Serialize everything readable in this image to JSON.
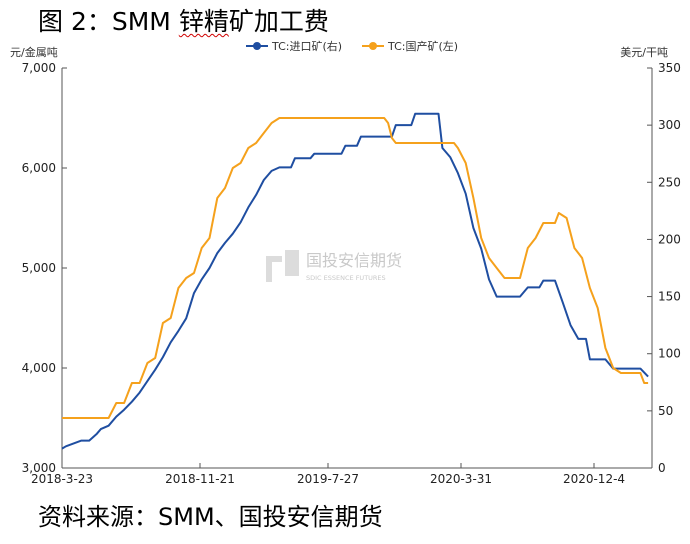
{
  "title": {
    "prefix": "图 2：SMM ",
    "underlined": "锌精",
    "suffix": "矿加工费"
  },
  "source": "资料来源：SMM、国投安信期货",
  "watermark": {
    "name": "国投安信期货",
    "sub": "SDIC ESSENCE FUTURES"
  },
  "colors": {
    "import": "#1f4ea1",
    "domestic": "#f5a11c",
    "axis": "#555555",
    "watermark": "#c9c9c9"
  },
  "chart_data": {
    "type": "line",
    "left_axis": {
      "label": "元/金属吨",
      "range": [
        3000,
        7000
      ],
      "ticks": [
        3000,
        4000,
        5000,
        6000,
        7000
      ],
      "tick_labels": [
        "3,000",
        "4,000",
        "5,000",
        "6,000",
        "7,000"
      ]
    },
    "right_axis": {
      "label": "美元/干吨",
      "range": [
        0,
        350
      ],
      "ticks": [
        0,
        50,
        100,
        150,
        200,
        250,
        300,
        350
      ],
      "tick_labels": [
        "0",
        "50",
        "100",
        "150",
        "200",
        "250",
        "300",
        "350"
      ]
    },
    "x_axis": {
      "tick_labels": [
        "2018-3-23",
        "2018-11-21",
        "2019-7-27",
        "2020-3-31",
        "2020-12-4"
      ]
    },
    "legend": {
      "position": "top",
      "entries": [
        "TC:进口矿(右)",
        "TC:国产矿(左)"
      ]
    },
    "grid": false,
    "series": [
      {
        "name": "TC:进口矿(右)",
        "axis": "right",
        "points": [
          [
            "2018-03-23",
            17
          ],
          [
            "2018-03-30",
            19
          ],
          [
            "2018-04-27",
            24
          ],
          [
            "2018-05-11",
            24
          ],
          [
            "2018-05-25",
            30
          ],
          [
            "2018-06-01",
            34
          ],
          [
            "2018-06-15",
            37
          ],
          [
            "2018-06-29",
            45
          ],
          [
            "2018-07-13",
            51
          ],
          [
            "2018-07-27",
            58
          ],
          [
            "2018-08-10",
            66
          ],
          [
            "2018-08-24",
            76
          ],
          [
            "2018-09-07",
            86
          ],
          [
            "2018-09-21",
            97
          ],
          [
            "2018-10-05",
            110
          ],
          [
            "2018-10-19",
            120
          ],
          [
            "2018-11-02",
            131
          ],
          [
            "2018-11-16",
            153
          ],
          [
            "2018-11-30",
            165
          ],
          [
            "2018-12-14",
            175
          ],
          [
            "2018-12-28",
            188
          ],
          [
            "2019-01-11",
            197
          ],
          [
            "2019-01-25",
            205
          ],
          [
            "2019-02-08",
            215
          ],
          [
            "2019-02-22",
            228
          ],
          [
            "2019-03-08",
            239
          ],
          [
            "2019-03-22",
            252
          ],
          [
            "2019-04-05",
            260
          ],
          [
            "2019-04-19",
            263
          ],
          [
            "2019-05-10",
            263
          ],
          [
            "2019-05-17",
            271
          ],
          [
            "2019-06-14",
            271
          ],
          [
            "2019-06-21",
            275
          ],
          [
            "2019-08-09",
            275
          ],
          [
            "2019-08-16",
            282
          ],
          [
            "2019-09-06",
            282
          ],
          [
            "2019-09-13",
            290
          ],
          [
            "2019-11-08",
            290
          ],
          [
            "2019-11-15",
            300
          ],
          [
            "2019-12-13",
            300
          ],
          [
            "2019-12-20",
            310
          ],
          [
            "2020-01-31",
            310
          ],
          [
            "2020-02-07",
            280
          ],
          [
            "2020-02-21",
            272
          ],
          [
            "2020-03-06",
            258
          ],
          [
            "2020-03-20",
            240
          ],
          [
            "2020-04-03",
            210
          ],
          [
            "2020-04-17",
            192
          ],
          [
            "2020-05-01",
            165
          ],
          [
            "2020-05-15",
            150
          ],
          [
            "2020-05-29",
            150
          ],
          [
            "2020-06-26",
            150
          ],
          [
            "2020-07-10",
            158
          ],
          [
            "2020-07-31",
            158
          ],
          [
            "2020-08-07",
            164
          ],
          [
            "2020-08-28",
            164
          ],
          [
            "2020-09-11",
            145
          ],
          [
            "2020-09-25",
            125
          ],
          [
            "2020-10-09",
            113
          ],
          [
            "2020-10-23",
            113
          ],
          [
            "2020-10-30",
            95
          ],
          [
            "2020-11-27",
            95
          ],
          [
            "2020-12-11",
            87
          ],
          [
            "2021-01-29",
            87
          ],
          [
            "2021-02-12",
            80
          ]
        ]
      },
      {
        "name": "TC:国产矿(左)",
        "axis": "left",
        "points": [
          [
            "2018-03-23",
            3500
          ],
          [
            "2018-06-15",
            3500
          ],
          [
            "2018-06-29",
            3650
          ],
          [
            "2018-07-13",
            3650
          ],
          [
            "2018-07-27",
            3850
          ],
          [
            "2018-08-10",
            3850
          ],
          [
            "2018-08-24",
            4050
          ],
          [
            "2018-09-07",
            4100
          ],
          [
            "2018-09-21",
            4450
          ],
          [
            "2018-10-05",
            4500
          ],
          [
            "2018-10-19",
            4800
          ],
          [
            "2018-11-02",
            4900
          ],
          [
            "2018-11-16",
            4950
          ],
          [
            "2018-11-30",
            5200
          ],
          [
            "2018-12-14",
            5300
          ],
          [
            "2018-12-28",
            5700
          ],
          [
            "2019-01-11",
            5800
          ],
          [
            "2019-01-25",
            6000
          ],
          [
            "2019-02-08",
            6050
          ],
          [
            "2019-02-22",
            6200
          ],
          [
            "2019-03-08",
            6250
          ],
          [
            "2019-03-22",
            6350
          ],
          [
            "2019-04-05",
            6450
          ],
          [
            "2019-04-19",
            6500
          ],
          [
            "2019-10-25",
            6500
          ],
          [
            "2019-11-01",
            6450
          ],
          [
            "2019-11-08",
            6300
          ],
          [
            "2019-11-15",
            6250
          ],
          [
            "2019-12-13",
            6250
          ],
          [
            "2020-02-28",
            6250
          ],
          [
            "2020-03-06",
            6200
          ],
          [
            "2020-03-20",
            6050
          ],
          [
            "2020-04-03",
            5700
          ],
          [
            "2020-04-17",
            5300
          ],
          [
            "2020-05-01",
            5100
          ],
          [
            "2020-05-15",
            5000
          ],
          [
            "2020-05-29",
            4900
          ],
          [
            "2020-06-26",
            4900
          ],
          [
            "2020-07-10",
            5200
          ],
          [
            "2020-07-24",
            5300
          ],
          [
            "2020-08-07",
            5450
          ],
          [
            "2020-08-28",
            5450
          ],
          [
            "2020-09-04",
            5550
          ],
          [
            "2020-09-18",
            5500
          ],
          [
            "2020-10-02",
            5200
          ],
          [
            "2020-10-16",
            5100
          ],
          [
            "2020-10-30",
            4800
          ],
          [
            "2020-11-13",
            4600
          ],
          [
            "2020-11-27",
            4200
          ],
          [
            "2020-12-11",
            4000
          ],
          [
            "2020-12-25",
            3950
          ],
          [
            "2021-01-29",
            3950
          ],
          [
            "2021-02-05",
            3850
          ],
          [
            "2021-02-12",
            3850
          ]
        ]
      }
    ]
  }
}
